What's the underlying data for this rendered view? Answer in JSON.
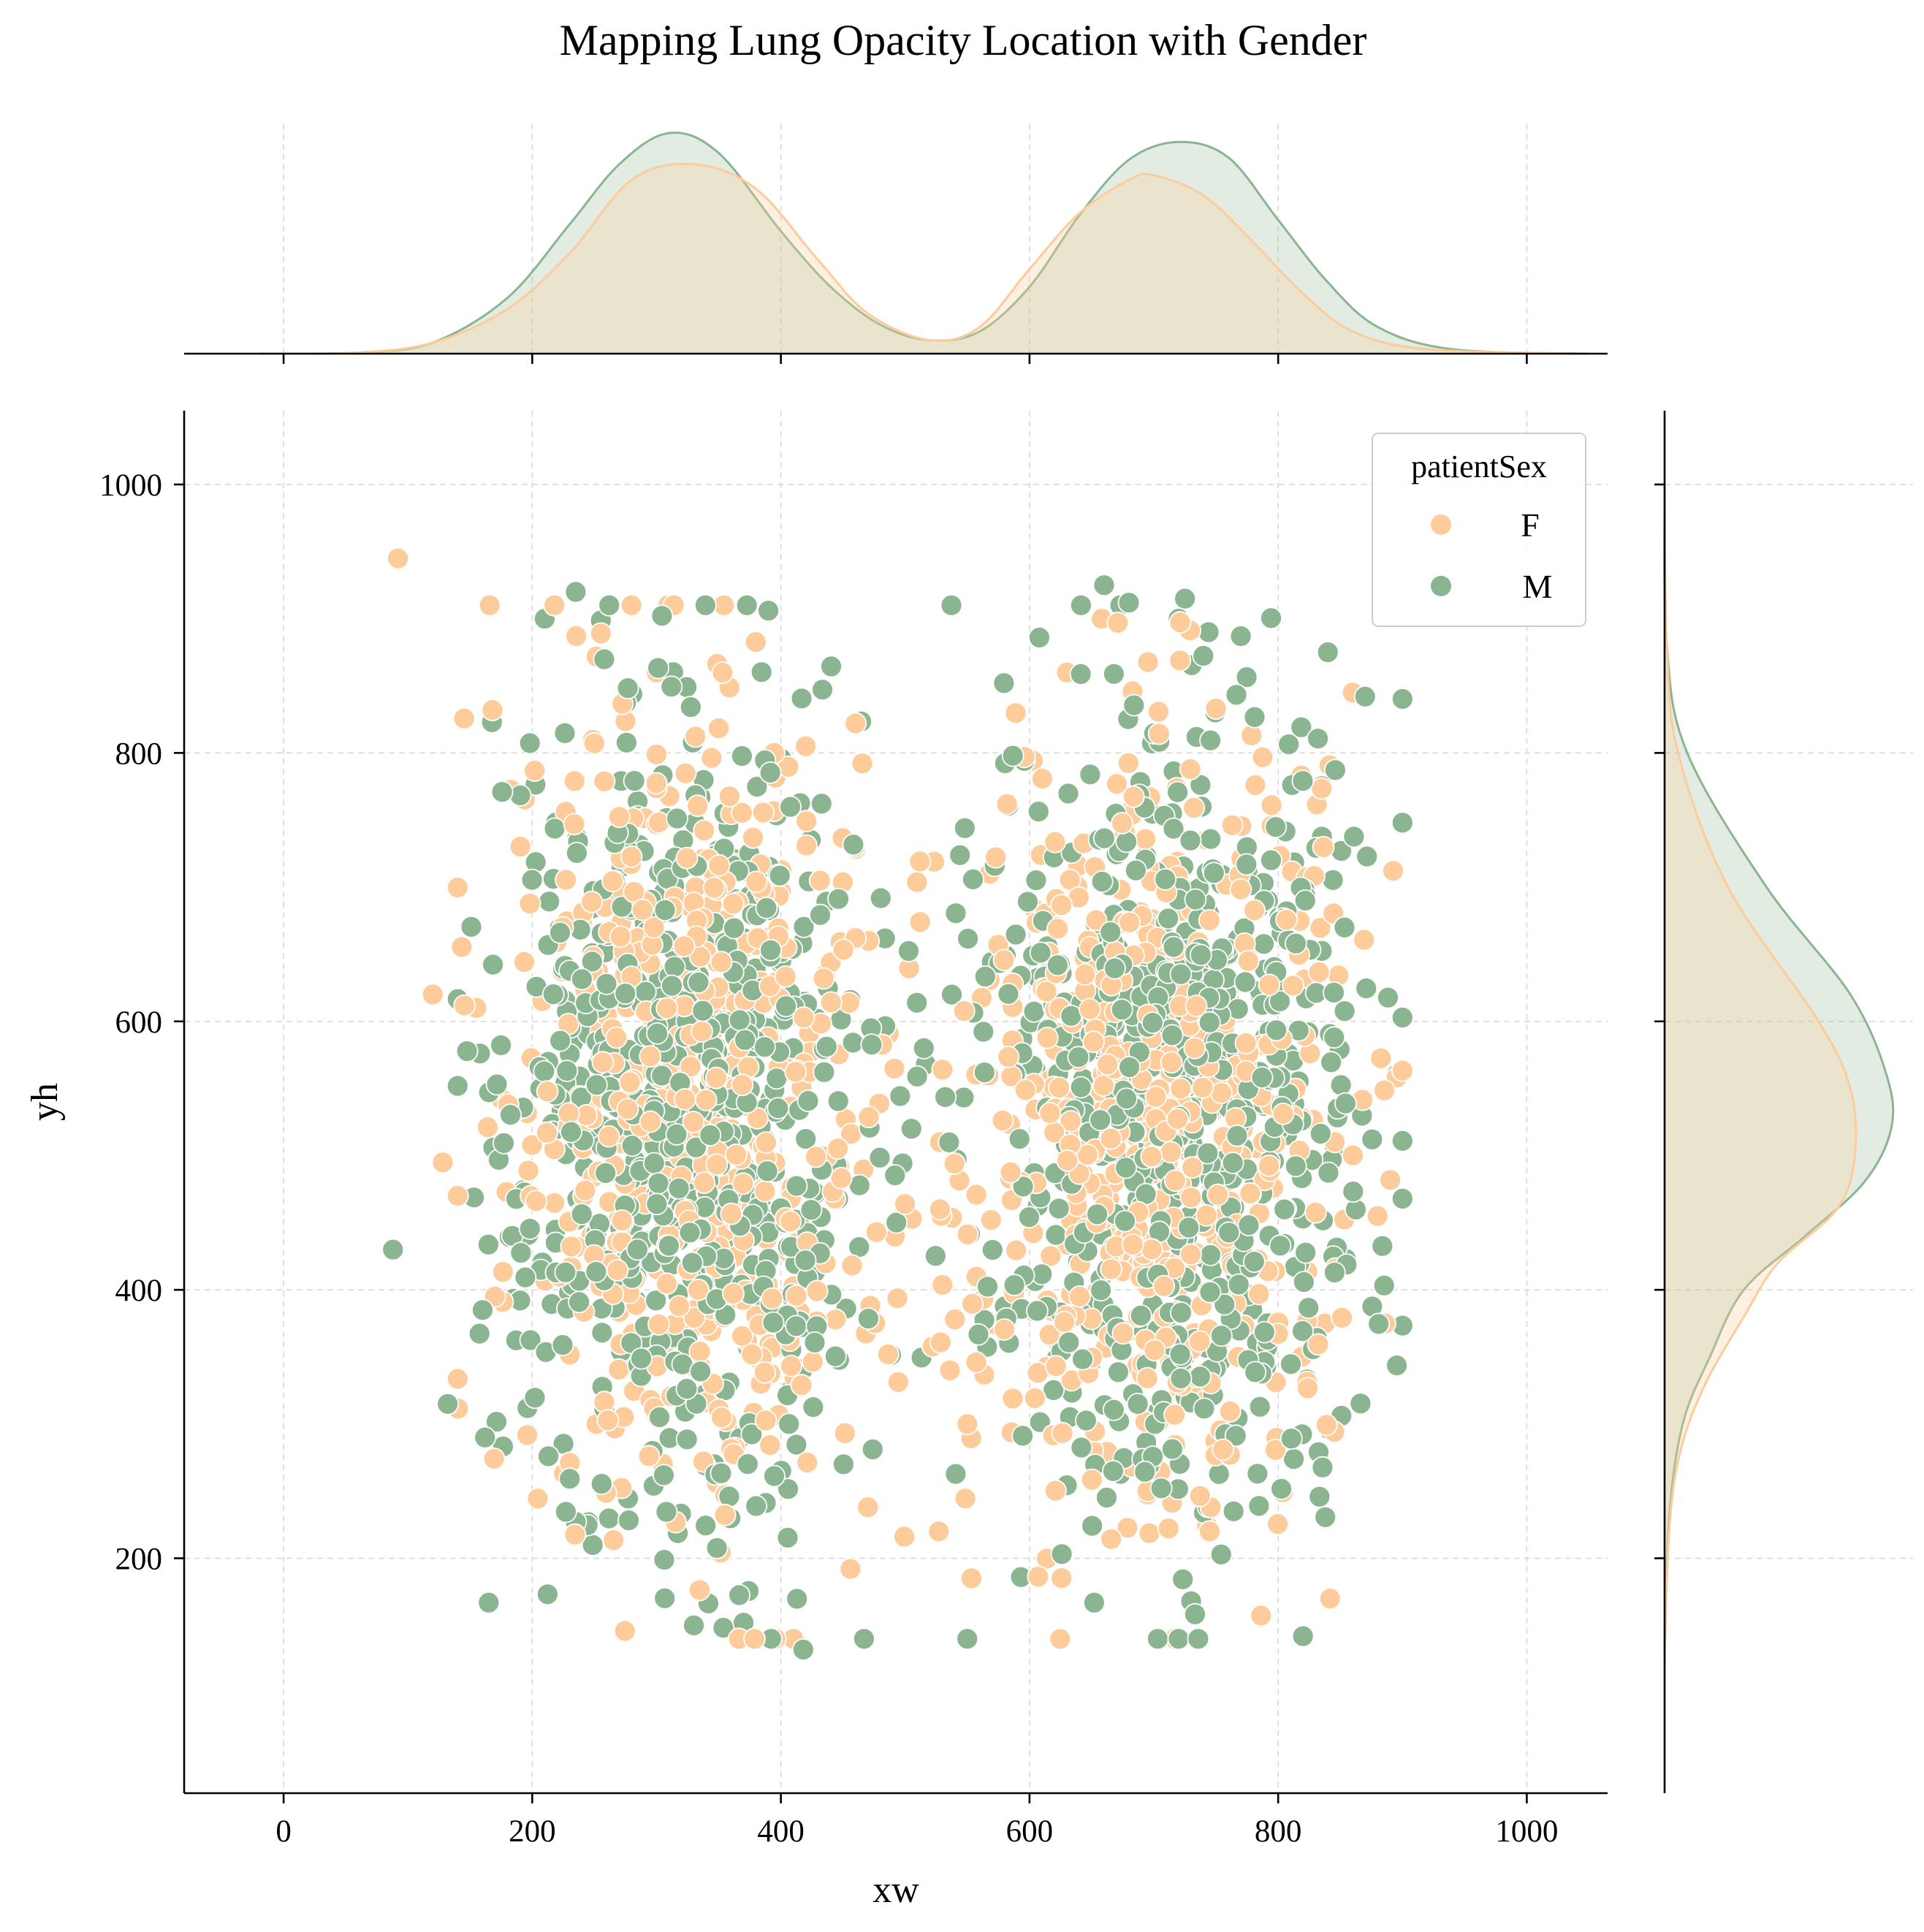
{
  "chart_data": {
    "type": "scatter",
    "title": "Mapping Lung Opacity Location with Gender",
    "xlabel": "xw",
    "ylabel": "yh",
    "xlim": [
      -80,
      1065
    ],
    "ylim": [
      25,
      1055
    ],
    "xticks": [
      "0",
      "200",
      "400",
      "600",
      "800",
      "1000"
    ],
    "yticks": [
      "200",
      "400",
      "600",
      "800",
      "1000"
    ],
    "grid": true,
    "legend": {
      "title": "patientSex",
      "placement": "top-right"
    },
    "colors": {
      "F": "#fdcc9a",
      "M": "#8ab590"
    },
    "series": [
      {
        "name": "F",
        "color": "#fdcc9a",
        "clusters": [
          {
            "center": [
              330,
              530
            ],
            "spread": [
              70,
              140
            ],
            "count": 600
          },
          {
            "center": [
              700,
              520
            ],
            "spread": [
              75,
              145
            ],
            "count": 620
          }
        ],
        "points": [
          [
            92,
            945
          ],
          [
            120,
            620
          ],
          [
            128,
            495
          ],
          [
            168,
            832
          ],
          [
            155,
            610
          ],
          [
            460,
            822
          ],
          [
            420,
            805
          ],
          [
            300,
            860
          ],
          [
            410,
            140
          ],
          [
            456,
            192
          ],
          [
            527,
            220
          ],
          [
            512,
            674
          ],
          [
            530,
            564
          ],
          [
            528,
            460
          ],
          [
            596,
            797
          ],
          [
            658,
            900
          ],
          [
            750,
            833
          ],
          [
            860,
            845
          ],
          [
            886,
            375
          ],
          [
            880,
            455
          ],
          [
            470,
            238
          ],
          [
            550,
            300
          ],
          [
            528,
            510
          ],
          [
            170,
            395
          ]
        ],
        "x_density": [
          [
            -20,
            0.0
          ],
          [
            60,
            0.005
          ],
          [
            120,
            0.05
          ],
          [
            180,
            0.2
          ],
          [
            230,
            0.45
          ],
          [
            280,
            0.78
          ],
          [
            330,
            0.85
          ],
          [
            380,
            0.74
          ],
          [
            430,
            0.42
          ],
          [
            470,
            0.18
          ],
          [
            520,
            0.06
          ],
          [
            560,
            0.12
          ],
          [
            600,
            0.38
          ],
          [
            640,
            0.63
          ],
          [
            680,
            0.78
          ],
          [
            700,
            0.8
          ],
          [
            740,
            0.71
          ],
          [
            780,
            0.5
          ],
          [
            820,
            0.27
          ],
          [
            860,
            0.1
          ],
          [
            920,
            0.02
          ],
          [
            1050,
            0.0
          ]
        ],
        "y_density": [
          [
            1000,
            0.0
          ],
          [
            880,
            0.01
          ],
          [
            800,
            0.06
          ],
          [
            700,
            0.28
          ],
          [
            600,
            0.68
          ],
          [
            550,
            0.82
          ],
          [
            500,
            0.84
          ],
          [
            460,
            0.76
          ],
          [
            420,
            0.5
          ],
          [
            380,
            0.35
          ],
          [
            330,
            0.18
          ],
          [
            280,
            0.07
          ],
          [
            220,
            0.02
          ],
          [
            120,
            0.0
          ]
        ]
      },
      {
        "name": "M",
        "color": "#8ab590",
        "clusters": [
          {
            "center": [
              320,
              540
            ],
            "spread": [
              75,
              150
            ],
            "count": 760
          },
          {
            "center": [
              720,
              535
            ],
            "spread": [
              75,
              150
            ],
            "count": 780
          }
        ],
        "points": [
          [
            88,
            430
          ],
          [
            235,
            920
          ],
          [
            210,
            900
          ],
          [
            390,
            906
          ],
          [
            660,
            925
          ],
          [
            680,
            912
          ],
          [
            720,
            900
          ],
          [
            725,
            915
          ],
          [
            770,
            887
          ],
          [
            900,
            748
          ],
          [
            165,
            167
          ],
          [
            330,
            150
          ],
          [
            370,
            152
          ],
          [
            418,
            132
          ],
          [
            820,
            142
          ],
          [
            652,
            167
          ],
          [
            730,
            168
          ],
          [
            548,
            744
          ],
          [
            515,
            580
          ],
          [
            505,
            520
          ],
          [
            895,
            560
          ],
          [
            870,
            842
          ],
          [
            840,
            875
          ],
          [
            132,
            315
          ],
          [
            162,
            290
          ]
        ],
        "x_density": [
          [
            -20,
            0.0
          ],
          [
            60,
            0.005
          ],
          [
            120,
            0.05
          ],
          [
            180,
            0.25
          ],
          [
            230,
            0.58
          ],
          [
            270,
            0.85
          ],
          [
            310,
            0.99
          ],
          [
            350,
            0.9
          ],
          [
            400,
            0.55
          ],
          [
            440,
            0.3
          ],
          [
            480,
            0.13
          ],
          [
            520,
            0.06
          ],
          [
            560,
            0.1
          ],
          [
            600,
            0.3
          ],
          [
            640,
            0.62
          ],
          [
            680,
            0.87
          ],
          [
            720,
            0.95
          ],
          [
            760,
            0.88
          ],
          [
            800,
            0.6
          ],
          [
            840,
            0.32
          ],
          [
            880,
            0.12
          ],
          [
            940,
            0.02
          ],
          [
            1050,
            0.0
          ]
        ],
        "y_density": [
          [
            1000,
            0.0
          ],
          [
            880,
            0.01
          ],
          [
            800,
            0.1
          ],
          [
            700,
            0.45
          ],
          [
            620,
            0.82
          ],
          [
            560,
            0.98
          ],
          [
            520,
            1.0
          ],
          [
            480,
            0.88
          ],
          [
            440,
            0.62
          ],
          [
            400,
            0.35
          ],
          [
            350,
            0.2
          ],
          [
            300,
            0.08
          ],
          [
            230,
            0.02
          ],
          [
            130,
            0.0
          ]
        ]
      }
    ]
  }
}
